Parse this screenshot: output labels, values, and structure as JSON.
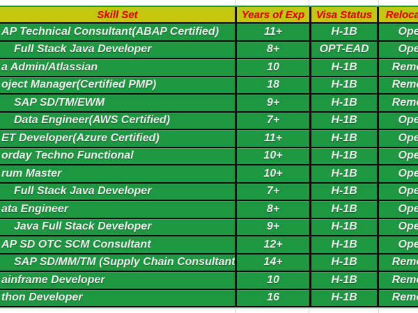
{
  "table": {
    "headers": {
      "skill": "Skill Set",
      "years": "Years of Exp",
      "visa": "Visa Status",
      "reloc": "Relocation"
    },
    "rows": [
      {
        "skill": "AP Technical Consultant(ABAP Certified)",
        "indent": false,
        "years": "11+",
        "visa": "H-1B",
        "reloc": "Open"
      },
      {
        "skill": "Full Stack Java Developer",
        "indent": true,
        "years": "8+",
        "visa": "OPT-EAD",
        "reloc": "Open"
      },
      {
        "skill": "a Admin/Atlassian",
        "indent": false,
        "years": "10",
        "visa": "H-1B",
        "reloc": "Remote"
      },
      {
        "skill": "oject Manager(Certified PMP)",
        "indent": false,
        "years": "18",
        "visa": "H-1B",
        "reloc": "Remote"
      },
      {
        "skill": "SAP SD/TM/EWM",
        "indent": true,
        "years": "9+",
        "visa": "H-1B",
        "reloc": "Remote"
      },
      {
        "skill": "Data Engineer(AWS Certified)",
        "indent": true,
        "years": "7+",
        "visa": "H-1B",
        "reloc": "Open"
      },
      {
        "skill": "ET Developer(Azure Certified)",
        "indent": false,
        "years": "11+",
        "visa": "H-1B",
        "reloc": "Open"
      },
      {
        "skill": "orday Techno Functional",
        "indent": false,
        "years": "10+",
        "visa": "H-1B",
        "reloc": "Open"
      },
      {
        "skill": "rum Master",
        "indent": false,
        "years": "10+",
        "visa": "H-1B",
        "reloc": "Open"
      },
      {
        "skill": "Full Stack Java Developer",
        "indent": true,
        "years": "7+",
        "visa": "H-1B",
        "reloc": "Open"
      },
      {
        "skill": "ata Engineer",
        "indent": false,
        "years": "8+",
        "visa": "H-1B",
        "reloc": "Open"
      },
      {
        "skill": "Java Full Stack Developer",
        "indent": true,
        "years": "9+",
        "visa": "H-1B",
        "reloc": "Open"
      },
      {
        "skill": "AP SD OTC SCM Consultant",
        "indent": false,
        "years": "12+",
        "visa": "H-1B",
        "reloc": "Open"
      },
      {
        "skill": "SAP SD/MM/TM (Supply Chain Consultant)",
        "indent": true,
        "years": "14+",
        "visa": "H-1B",
        "reloc": "Remote"
      },
      {
        "skill": "ainframe Developer",
        "indent": false,
        "years": "10",
        "visa": "H-1B",
        "reloc": "Remote"
      },
      {
        "skill": "thon Developer",
        "indent": false,
        "years": "16",
        "visa": "H-1B",
        "reloc": "Remote"
      }
    ]
  },
  "colors": {
    "header_bg": "#c4c70d",
    "header_text": "#e10000",
    "row_bg": "#1f9641",
    "row_text": "#ebebeb",
    "border": "#0a0a0a"
  }
}
